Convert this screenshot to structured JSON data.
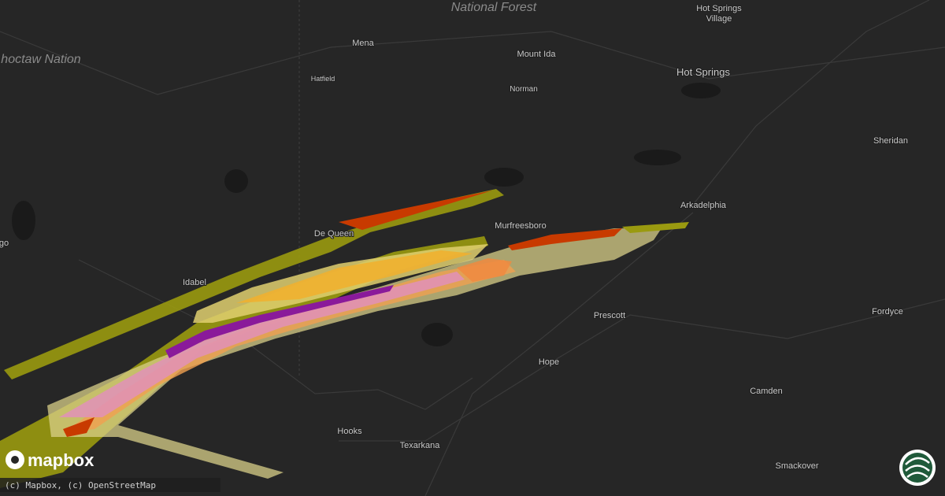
{
  "map": {
    "labels": [
      "National Forest",
      "Hot Springs",
      "Village",
      "hoctaw Nation",
      "Mena",
      "Mount Ida",
      "Hatfield",
      "Norman",
      "Hot Springs",
      "Sheridan",
      "Arkadelphia",
      "De Queen",
      "Murfreesboro",
      "Idabel",
      "go",
      "Prescott",
      "Fordyce",
      "Hope",
      "Camden",
      "Hooks",
      "Texarkana",
      "Smackover"
    ],
    "logo": "mapbox",
    "attribution": "(c) Mapbox, (c) OpenStreetMap"
  }
}
